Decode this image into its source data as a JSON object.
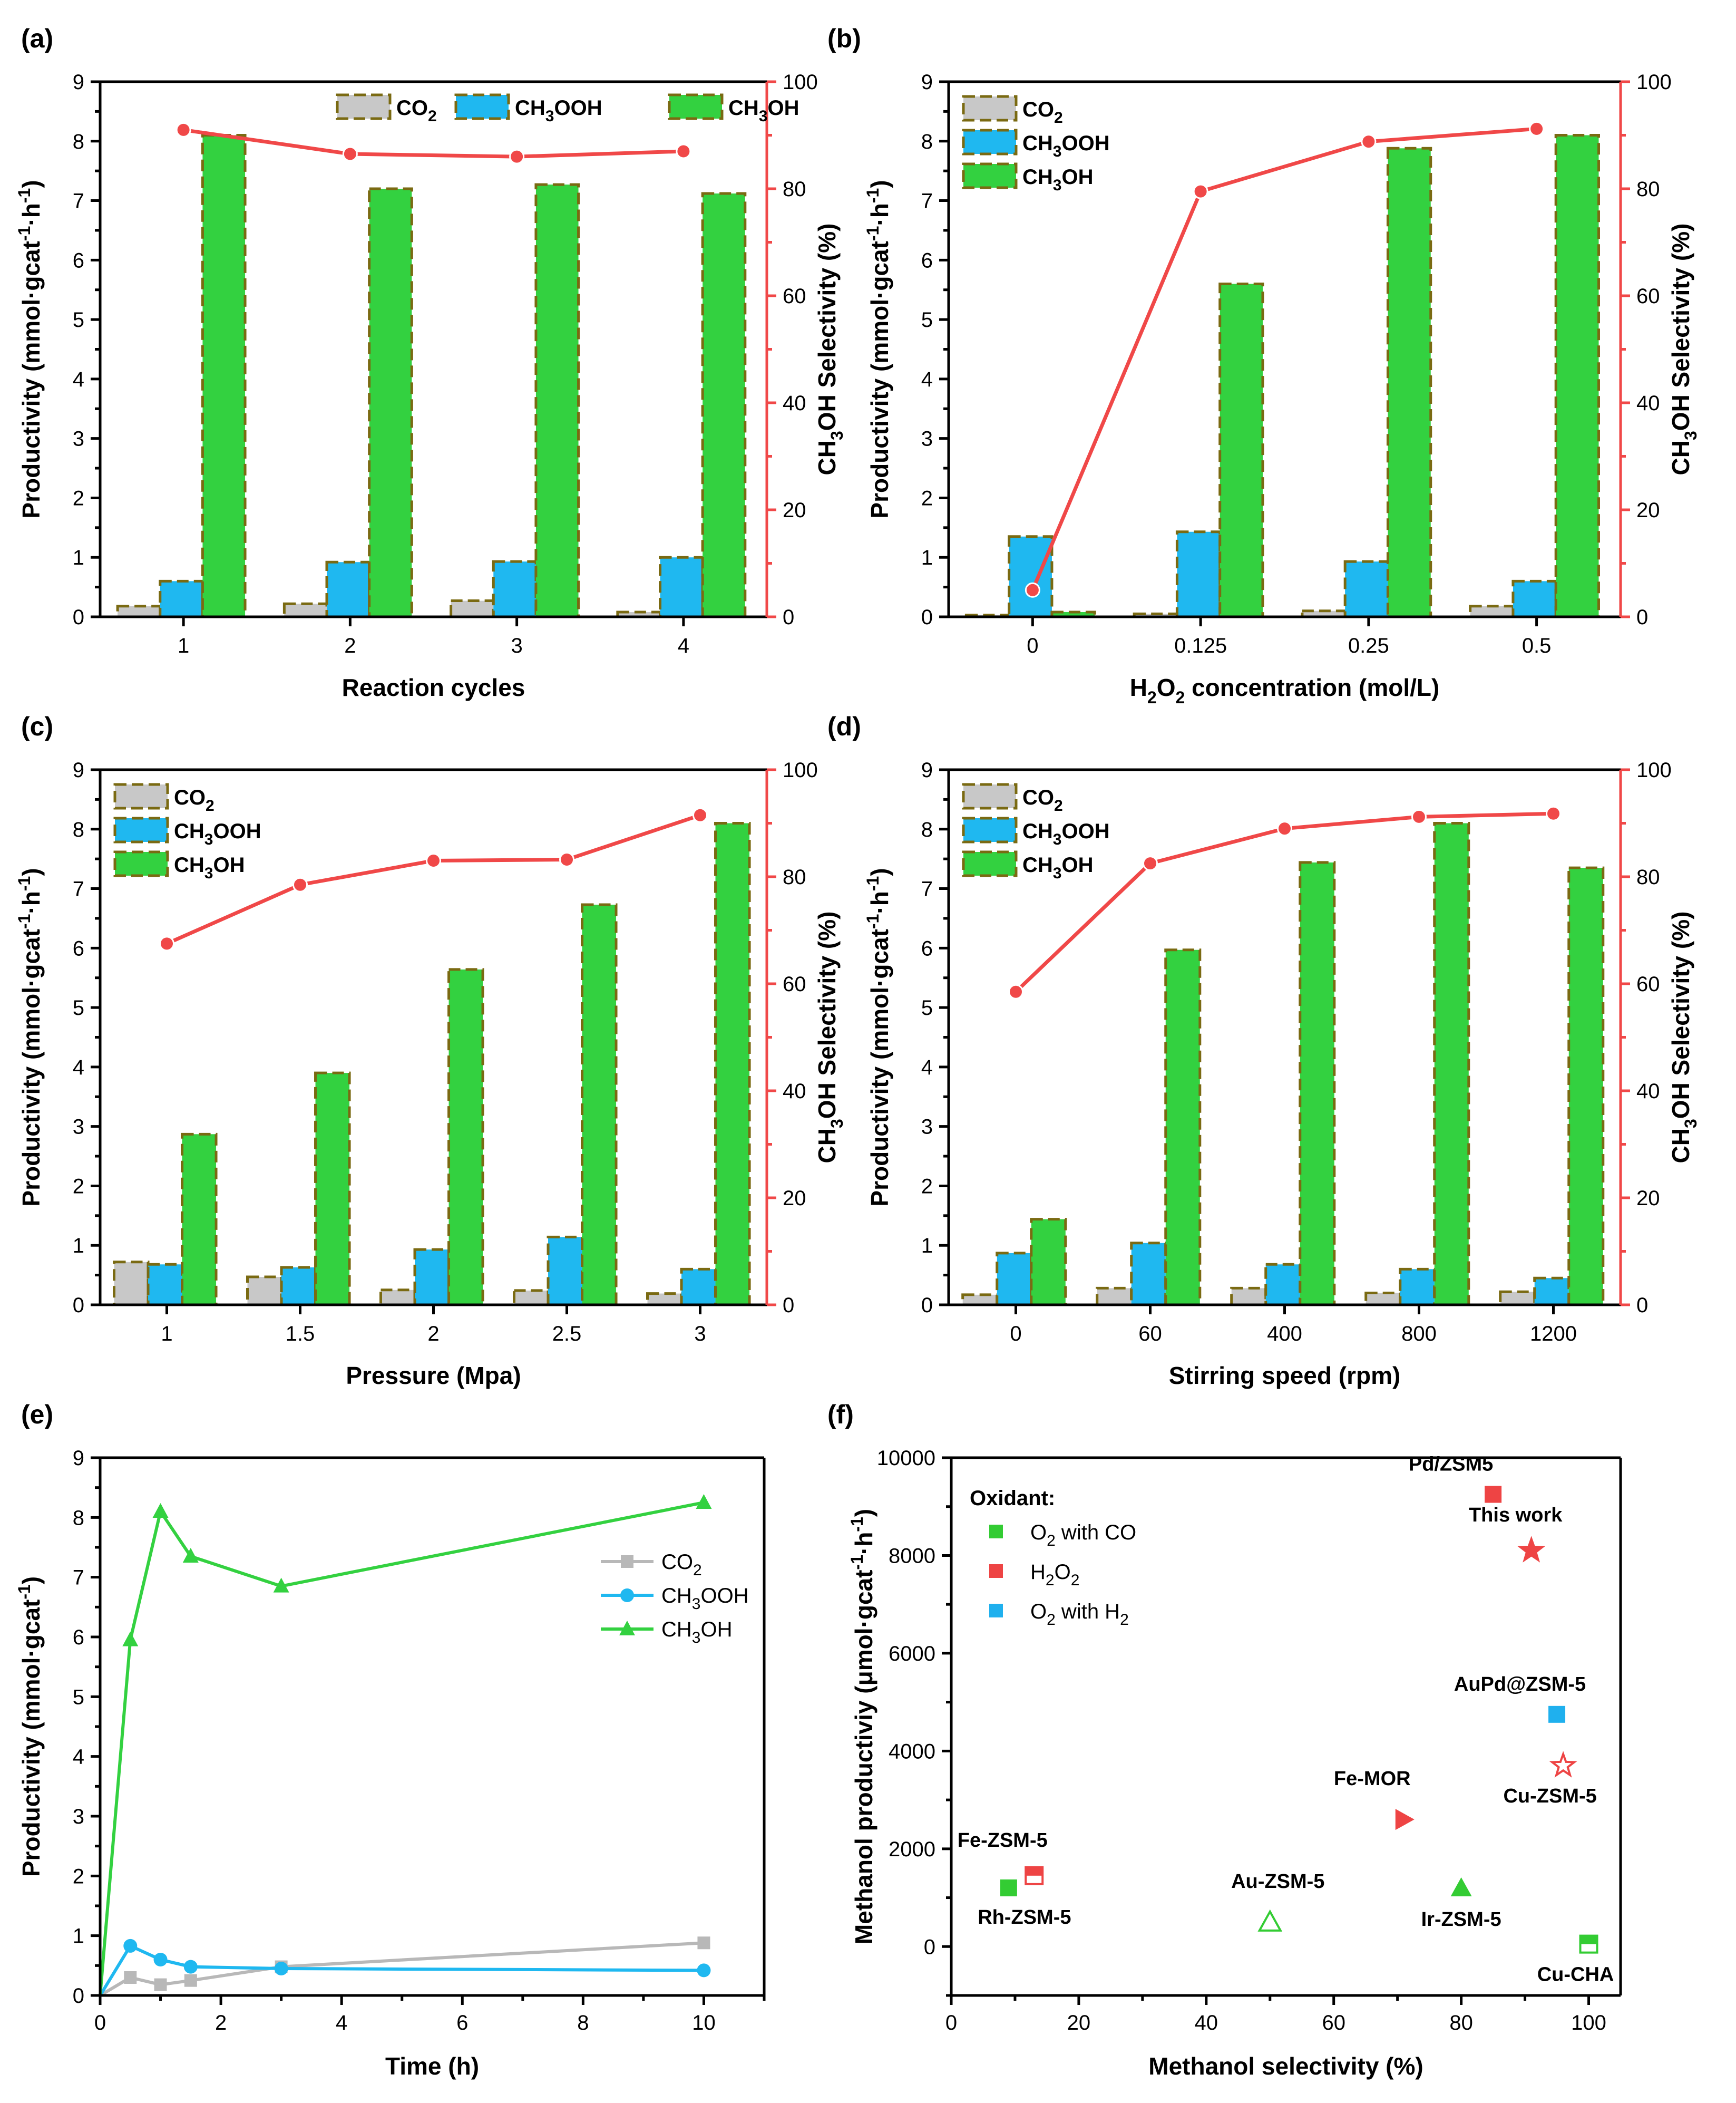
{
  "colors": {
    "co2": "#c8c8c8",
    "ch3ooh": "#1fb8f0",
    "ch3oh": "#33d140",
    "bar_edge": "#7a6a12",
    "selectivity": "#f04848",
    "co2_line": "#b8b8b8",
    "f_green": "#33cc33",
    "f_red": "#ee4444",
    "f_blue": "#1fb0ee"
  },
  "legend_labels": {
    "co2": {
      "main": "CO",
      "sub": "2",
      "tail": ""
    },
    "ch3ooh": {
      "main": "CH",
      "sub": "3",
      "tail": "OOH"
    },
    "ch3oh": {
      "main": "CH",
      "sub": "3",
      "tail": "OH"
    }
  },
  "axis_text": {
    "productivity_label": "Productivity (mmol·gcat",
    "productivity_sup1": "-1",
    "productivity_mid": "·h",
    "productivity_sup2": "-1",
    "productivity_end": ")",
    "selectivity_label_main": "CH",
    "selectivity_label_sub": "3",
    "selectivity_label_tail": "OH Selectivity (%)"
  },
  "chart_data": [
    {
      "panel": "(a)",
      "type": "bar",
      "xlabel": "Reaction cycles",
      "categories": [
        "1",
        "2",
        "3",
        "4"
      ],
      "ylim": [
        0,
        9
      ],
      "yticks": [
        0,
        1,
        2,
        3,
        4,
        5,
        6,
        7,
        8,
        9
      ],
      "y2lim": [
        0,
        100
      ],
      "y2ticks": [
        0,
        20,
        40,
        60,
        80,
        100
      ],
      "legend_position": "top-right",
      "series": [
        {
          "name": "CO2",
          "values": [
            0.18,
            0.22,
            0.27,
            0.08
          ]
        },
        {
          "name": "CH3OOH",
          "values": [
            0.6,
            0.92,
            0.93,
            1.0
          ]
        },
        {
          "name": "CH3OH",
          "values": [
            8.1,
            7.2,
            7.27,
            7.12
          ]
        }
      ],
      "selectivity": [
        91.0,
        86.5,
        86.0,
        87.0
      ]
    },
    {
      "panel": "(b)",
      "type": "bar",
      "xlabel": "H2O2 concentration (mol/L)",
      "xlabel_parts": {
        "a": "H",
        "s1": "2",
        "b": "O",
        "s2": "2",
        "c": " concentration (mol/L)"
      },
      "categories": [
        "0",
        "0.125",
        "0.25",
        "0.5"
      ],
      "ylim": [
        0,
        9
      ],
      "yticks": [
        0,
        1,
        2,
        3,
        4,
        5,
        6,
        7,
        8,
        9
      ],
      "y2lim": [
        0,
        100
      ],
      "y2ticks": [
        0,
        20,
        40,
        60,
        80,
        100
      ],
      "legend_position": "top-left",
      "series": [
        {
          "name": "CO2",
          "values": [
            0.03,
            0.05,
            0.1,
            0.18
          ]
        },
        {
          "name": "CH3OOH",
          "values": [
            1.35,
            1.43,
            0.93,
            0.6
          ]
        },
        {
          "name": "CH3OH",
          "values": [
            0.08,
            5.6,
            7.88,
            8.1
          ]
        }
      ],
      "selectivity": [
        5.0,
        79.5,
        88.8,
        91.2
      ]
    },
    {
      "panel": "(c)",
      "type": "bar",
      "xlabel": "Pressure (Mpa)",
      "categories": [
        "1",
        "1.5",
        "2",
        "2.5",
        "3"
      ],
      "ylim": [
        0,
        9
      ],
      "yticks": [
        0,
        1,
        2,
        3,
        4,
        5,
        6,
        7,
        8,
        9
      ],
      "y2lim": [
        0,
        100
      ],
      "y2ticks": [
        0,
        20,
        40,
        60,
        80,
        100
      ],
      "legend_position": "top-left",
      "series": [
        {
          "name": "CO2",
          "values": [
            0.72,
            0.47,
            0.25,
            0.24,
            0.19
          ]
        },
        {
          "name": "CH3OOH",
          "values": [
            0.68,
            0.63,
            0.93,
            1.14,
            0.6
          ]
        },
        {
          "name": "CH3OH",
          "values": [
            2.87,
            3.9,
            5.64,
            6.73,
            8.1
          ]
        }
      ],
      "selectivity": [
        67.5,
        78.5,
        83.0,
        83.2,
        91.5
      ]
    },
    {
      "panel": "(d)",
      "type": "bar",
      "xlabel": "Stirring speed (rpm)",
      "categories": [
        "0",
        "60",
        "400",
        "800",
        "1200"
      ],
      "ylim": [
        0,
        9
      ],
      "yticks": [
        0,
        1,
        2,
        3,
        4,
        5,
        6,
        7,
        8,
        9
      ],
      "y2lim": [
        0,
        100
      ],
      "y2ticks": [
        0,
        20,
        40,
        60,
        80,
        100
      ],
      "legend_position": "top-left",
      "series": [
        {
          "name": "CO2",
          "values": [
            0.17,
            0.28,
            0.28,
            0.2,
            0.22
          ]
        },
        {
          "name": "CH3OOH",
          "values": [
            0.87,
            1.04,
            0.68,
            0.6,
            0.45
          ]
        },
        {
          "name": "CH3OH",
          "values": [
            1.44,
            5.97,
            7.44,
            8.1,
            7.35
          ]
        }
      ],
      "selectivity": [
        58.5,
        82.5,
        89.0,
        91.2,
        91.8
      ]
    },
    {
      "panel": "(e)",
      "type": "line",
      "xlabel": "Time (h)",
      "ylabel": "Productivity (mmol·gcat-1)",
      "ylabel_parts": {
        "main": "Productivity (mmol·gcat",
        "sup": "-1",
        "end": ")"
      },
      "xlim": [
        0,
        11
      ],
      "xticks": [
        0,
        2,
        4,
        6,
        8,
        10
      ],
      "ylim": [
        0,
        9
      ],
      "yticks": [
        0,
        1,
        2,
        3,
        4,
        5,
        6,
        7,
        8,
        9
      ],
      "legend_position": "right",
      "series": [
        {
          "name": "CO2",
          "marker": "square",
          "x": [
            0,
            0.5,
            1,
            1.5,
            3,
            10
          ],
          "y": [
            0,
            0.3,
            0.18,
            0.25,
            0.48,
            0.88
          ]
        },
        {
          "name": "CH3OOH",
          "marker": "circle",
          "x": [
            0,
            0.5,
            1,
            1.5,
            3,
            10
          ],
          "y": [
            0,
            0.83,
            0.6,
            0.48,
            0.45,
            0.42
          ]
        },
        {
          "name": "CH3OH",
          "marker": "triangle",
          "x": [
            0,
            0.5,
            1,
            1.5,
            3,
            10
          ],
          "y": [
            0,
            5.95,
            8.1,
            7.35,
            6.85,
            8.25
          ]
        }
      ]
    },
    {
      "panel": "(f)",
      "type": "scatter",
      "xlabel": "Methanol selectivity (%)",
      "ylabel": "Methanol productiviy (μmol·gcat-1·h-1)",
      "ylabel_parts": {
        "main": "Methanol productiviy (μmol·gcat",
        "sup1": "-1",
        "mid": "·h",
        "sup2": "-1",
        "end": ")"
      },
      "xlim": [
        0,
        105
      ],
      "xticks": [
        0,
        20,
        40,
        60,
        80,
        100
      ],
      "ylim": [
        -1000,
        10000
      ],
      "yticks": [
        0,
        2000,
        4000,
        6000,
        8000,
        10000
      ],
      "legend_title": "Oxidant:",
      "legend": [
        {
          "label_main": "O",
          "label_sub": "2",
          "label_tail": " with CO",
          "color_key": "f_green"
        },
        {
          "label_main": "H",
          "label_sub": "2",
          "label_tail": "O",
          "label_sub2": "2",
          "color_key": "f_red"
        },
        {
          "label_main": "O",
          "label_sub": "2",
          "label_tail": " with H",
          "label_sub2": "2",
          "color_key": "f_blue"
        }
      ],
      "points": [
        {
          "name": "Pd/ZSM5",
          "x": 85,
          "y": 9250,
          "marker": "square",
          "color_key": "f_red"
        },
        {
          "name": "This work",
          "x": 91,
          "y": 8100,
          "marker": "star",
          "color_key": "f_red"
        },
        {
          "name": "AuPd@ZSM-5",
          "x": 95,
          "y": 4750,
          "marker": "square",
          "color_key": "f_blue"
        },
        {
          "name": "Cu-ZSM-5",
          "x": 96,
          "y": 3700,
          "marker": "star-open",
          "color_key": "f_red"
        },
        {
          "name": "Fe-MOR",
          "x": 71,
          "y": 2600,
          "marker": "triangle-right",
          "color_key": "f_red"
        },
        {
          "name": "Fe-ZSM-5",
          "x": 13,
          "y": 1450,
          "marker": "square-half",
          "color_key": "f_red"
        },
        {
          "name": "Rh-ZSM-5",
          "x": 9,
          "y": 1200,
          "marker": "square",
          "color_key": "f_green"
        },
        {
          "name": "Au-ZSM-5",
          "x": 50,
          "y": 500,
          "marker": "triangle-open",
          "color_key": "f_green"
        },
        {
          "name": "Ir-ZSM-5",
          "x": 80,
          "y": 1200,
          "marker": "triangle",
          "color_key": "f_green"
        },
        {
          "name": "Cu-CHA",
          "x": 100,
          "y": 50,
          "marker": "square-half",
          "color_key": "f_green"
        }
      ]
    }
  ]
}
